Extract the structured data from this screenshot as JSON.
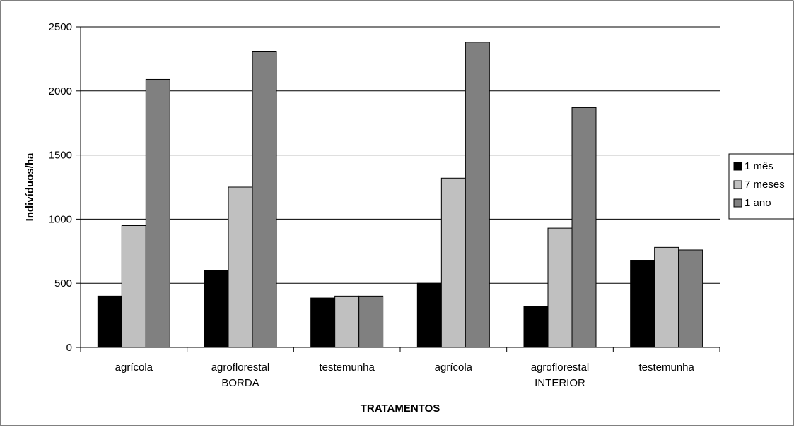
{
  "chart_data": {
    "type": "bar",
    "title": "",
    "xlabel": "TRATAMENTOS",
    "ylabel": "Indivíduos/ha",
    "ylim": [
      0,
      2500
    ],
    "yticks": [
      "0",
      "500",
      "1000",
      "1500",
      "2000",
      "2500"
    ],
    "grid": true,
    "legend_position": "right",
    "categories": [
      "agrícola",
      "agroflorestal",
      "testemunha",
      "agrícola",
      "agroflorestal",
      "testemunha"
    ],
    "group_labels": [
      {
        "label": "BORDA",
        "under_category": 1
      },
      {
        "label": "INTERIOR",
        "under_category": 4
      }
    ],
    "series": [
      {
        "name": "1 mês",
        "color": "#000000",
        "values": [
          400,
          600,
          385,
          500,
          320,
          680
        ]
      },
      {
        "name": "7 meses",
        "color": "#c0c0c0",
        "values": [
          950,
          1250,
          400,
          1320,
          930,
          780
        ]
      },
      {
        "name": "1 ano",
        "color": "#808080",
        "values": [
          2090,
          2310,
          400,
          2380,
          1870,
          760
        ]
      }
    ]
  }
}
